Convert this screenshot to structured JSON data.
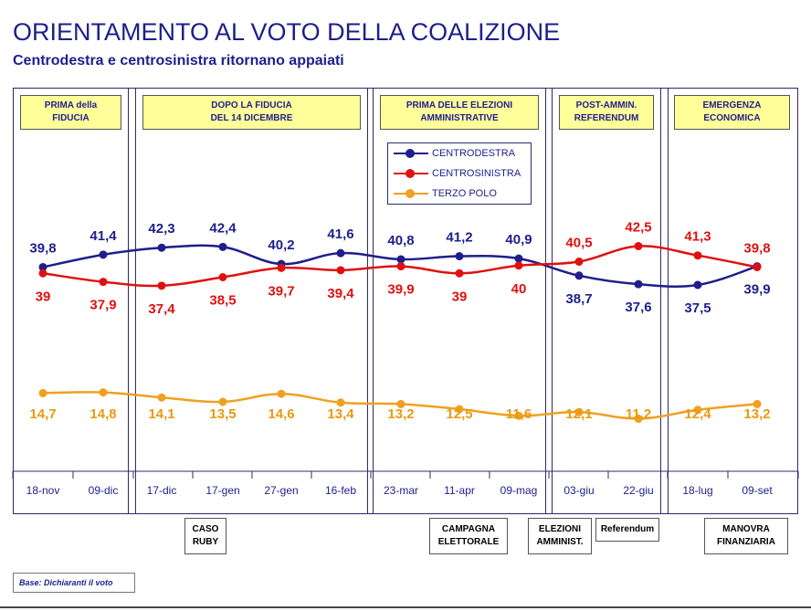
{
  "title": "ORIENTAMENTO AL VOTO DELLA COALIZIONE",
  "subtitle": "Centrodestra e centrosinistra ritornano appaiati",
  "periods": [
    {
      "label": "PRIMA della\nFIDUCIA"
    },
    {
      "label": "DOPO LA FIDUCIA\nDEL 14 DICEMBRE"
    },
    {
      "label": "PRIMA DELLE ELEZIONI\nAMMINISTRATIVE"
    },
    {
      "label": "POST-AMMIN.\nREFERENDUM"
    },
    {
      "label": "EMERGENZA\nECONOMICA"
    }
  ],
  "events": [
    {
      "label": "CASO\nRUBY"
    },
    {
      "label": "CAMPAGNA\nELETTORALE"
    },
    {
      "label": "ELEZIONI\nAMMINIST."
    },
    {
      "label": "Referendum"
    },
    {
      "label": "MANOVRA\nFINANZIARIA"
    }
  ],
  "base_note": "Base: Dichiaranti il voto",
  "chart_data": {
    "type": "line",
    "categories": [
      "18-nov",
      "09-dic",
      "17-dic",
      "17-gen",
      "27-gen",
      "16-feb",
      "23-mar",
      "11-apr",
      "09-mag",
      "03-giu",
      "22-giu",
      "18-lug",
      "09-set"
    ],
    "series": [
      {
        "name": "CENTRODESTRA",
        "color": "#1e1e8c",
        "values": [
          39.8,
          41.4,
          42.3,
          42.4,
          40.2,
          41.6,
          40.8,
          41.2,
          40.9,
          38.7,
          37.6,
          37.5,
          39.9
        ],
        "labels": [
          "39,8",
          "41,4",
          "42,3",
          "42,4",
          "40,2",
          "41,6",
          "40,8",
          "41,2",
          "40,9",
          "38,7",
          "37,6",
          "37,5",
          "39,9"
        ]
      },
      {
        "name": "CENTROSINISTRA",
        "color": "#e01010",
        "values": [
          39,
          37.9,
          37.4,
          38.5,
          39.7,
          39.4,
          39.9,
          39,
          40,
          40.5,
          42.5,
          41.3,
          39.8
        ],
        "labels": [
          "39",
          "37,9",
          "37,4",
          "38,5",
          "39,7",
          "39,4",
          "39,9",
          "39",
          "40",
          "40,5",
          "42,5",
          "41,3",
          "39,8"
        ]
      },
      {
        "name": "TERZO POLO",
        "color": "#f0a020",
        "values": [
          14.7,
          14.8,
          14.1,
          13.5,
          14.6,
          13.4,
          13.2,
          12.5,
          11.6,
          12.1,
          11.2,
          12.4,
          13.2
        ],
        "labels": [
          "14,7",
          "14,8",
          "14,1",
          "13,5",
          "14,6",
          "13,4",
          "13,2",
          "12,5",
          "11,6",
          "12,1",
          "11,2",
          "12,4",
          "13,2"
        ]
      }
    ],
    "legend_placement": "top-center"
  }
}
